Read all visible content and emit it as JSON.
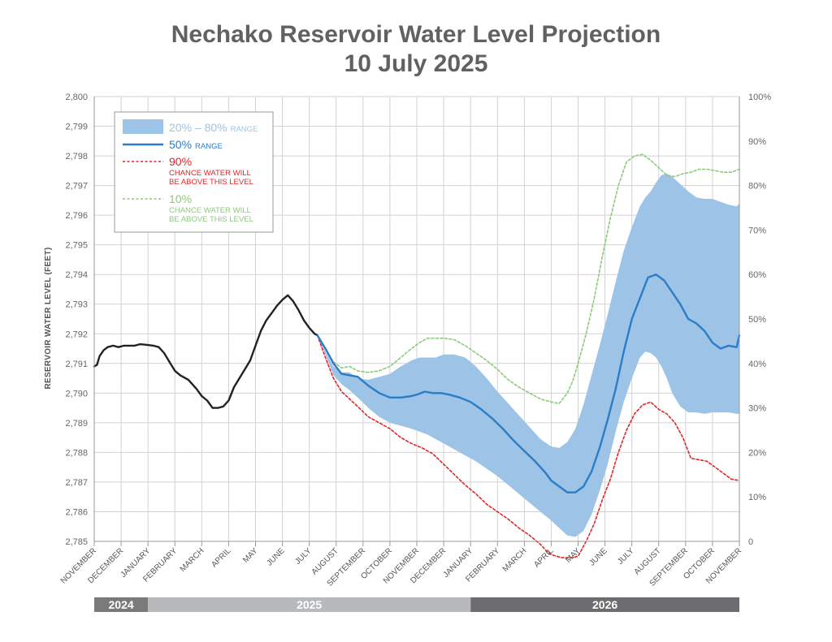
{
  "chart_data": {
    "type": "line",
    "title": "Nechako Reservoir Water Level Projection",
    "subtitle": "10 July 2025",
    "ylabel": "RESERVOIR WATER LEVEL (FEET)",
    "ylim": [
      2785,
      2800
    ],
    "yticks": [
      "2,785",
      "2,786",
      "2,787",
      "2,788",
      "2,789",
      "2,790",
      "2,791",
      "2,792",
      "2,793",
      "2,794",
      "2,795",
      "2,796",
      "2,797",
      "2,798",
      "2,799",
      "2,800"
    ],
    "y2ticks": [
      "0",
      "10%",
      "20%",
      "30%",
      "40%",
      "50%",
      "60%",
      "70%",
      "80%",
      "90%",
      "100%"
    ],
    "x_months": [
      "NOVEMBER",
      "DECEMBER",
      "JANUARY",
      "FEBRUARY",
      "MARCH",
      "APRIL",
      "MAY",
      "JUNE",
      "JULY",
      "AUGUST",
      "SEPTEMBER",
      "OCTOBER",
      "NOVEMBER",
      "DECEMBER",
      "JANUARY",
      "FEBRUARY",
      "MARCH",
      "APRIL",
      "MAY",
      "JUNE",
      "JULY",
      "AUGUST",
      "SEPTEMBER",
      "OCTOBER",
      "NOVEMBER"
    ],
    "years": [
      {
        "label": "2024",
        "start": 0,
        "end": 2,
        "color": "#7a7a7a"
      },
      {
        "label": "2025",
        "start": 2,
        "end": 14,
        "color": "#b7b9bb"
      },
      {
        "label": "2026",
        "start": 14,
        "end": 24,
        "color": "#6d6d6f"
      }
    ],
    "grid": true,
    "legend_position": "top-left",
    "legend": {
      "range_label": "20% – 80%",
      "range_suffix": "RANGE",
      "median_label": "50%",
      "median_suffix": "RANGE",
      "p90_label": "90%",
      "p90_line1": "CHANCE WATER WILL",
      "p90_line2": "BE ABOVE THIS LEVEL",
      "p10_label": "10%",
      "p10_line1": "CHANCE WATER WILL",
      "p10_line2": "BE ABOVE THIS LEVEL"
    },
    "colors": {
      "historical": "#222222",
      "median": "#2b7dc6",
      "band": "#9dc3e6",
      "p90": "#e0262a",
      "p10": "#8cc97c",
      "band_text": "#9dc3e6"
    },
    "series": [
      {
        "name": "Historical",
        "x": [
          0,
          0.1,
          0.2,
          0.35,
          0.5,
          0.7,
          0.9,
          1.1,
          1.3,
          1.5,
          1.7,
          2.0,
          2.2,
          2.4,
          2.6,
          2.8,
          3.0,
          3.2,
          3.5,
          3.8,
          4.0,
          4.2,
          4.4,
          4.6,
          4.8,
          5.0,
          5.2,
          5.4,
          5.6,
          5.8,
          6.0,
          6.2,
          6.4,
          6.6,
          6.8,
          7.0,
          7.2,
          7.4,
          7.6,
          7.8,
          8.0,
          8.2,
          8.3
        ],
        "y": [
          2790.9,
          2790.95,
          2791.25,
          2791.45,
          2791.55,
          2791.6,
          2791.55,
          2791.6,
          2791.6,
          2791.6,
          2791.65,
          2791.62,
          2791.6,
          2791.55,
          2791.35,
          2791.05,
          2790.75,
          2790.6,
          2790.45,
          2790.15,
          2789.9,
          2789.75,
          2789.5,
          2789.5,
          2789.55,
          2789.75,
          2790.2,
          2790.5,
          2790.8,
          2791.1,
          2791.6,
          2792.1,
          2792.45,
          2792.7,
          2792.95,
          2793.15,
          2793.3,
          2793.1,
          2792.8,
          2792.45,
          2792.2,
          2792.0,
          2791.95
        ]
      },
      {
        "name": "50%",
        "x": [
          8.3,
          8.6,
          8.9,
          9.2,
          9.5,
          9.8,
          10.2,
          10.6,
          11.0,
          11.4,
          11.8,
          12.0,
          12.3,
          12.6,
          12.9,
          13.2,
          13.6,
          14.0,
          14.4,
          14.8,
          15.2,
          15.6,
          16.0,
          16.4,
          16.8,
          17.0,
          17.3,
          17.6,
          17.9,
          18.2,
          18.5,
          18.8,
          19.1,
          19.4,
          19.7,
          20.0,
          20.3,
          20.6,
          20.9,
          21.2,
          21.5,
          21.8,
          22.1,
          22.4,
          22.7,
          23.0,
          23.3,
          23.6,
          23.9,
          24.0
        ],
        "y": [
          2791.95,
          2791.5,
          2791.0,
          2790.65,
          2790.6,
          2790.55,
          2790.25,
          2790.0,
          2789.85,
          2789.85,
          2789.9,
          2789.95,
          2790.05,
          2790.0,
          2790.0,
          2789.95,
          2789.85,
          2789.7,
          2789.45,
          2789.15,
          2788.8,
          2788.4,
          2788.05,
          2787.7,
          2787.3,
          2787.05,
          2786.85,
          2786.65,
          2786.65,
          2786.85,
          2787.35,
          2788.15,
          2789.1,
          2790.15,
          2791.4,
          2792.5,
          2793.2,
          2793.9,
          2794.0,
          2793.8,
          2793.4,
          2793.0,
          2792.5,
          2792.35,
          2792.1,
          2791.7,
          2791.5,
          2791.6,
          2791.55,
          2791.95
        ]
      },
      {
        "name": "90%",
        "x": [
          8.3,
          8.6,
          8.9,
          9.2,
          9.5,
          9.8,
          10.2,
          10.6,
          11.0,
          11.4,
          11.8,
          12.2,
          12.6,
          13.0,
          13.4,
          13.8,
          14.2,
          14.6,
          15.0,
          15.4,
          15.8,
          16.2,
          16.6,
          16.8,
          17.0,
          17.4,
          17.8,
          18.0,
          18.3,
          18.6,
          18.9,
          19.2,
          19.5,
          19.8,
          20.1,
          20.4,
          20.7,
          21.0,
          21.3,
          21.6,
          21.9,
          22.2,
          22.5,
          22.8,
          23.1,
          23.4,
          23.7,
          24.0
        ],
        "y": [
          2791.95,
          2791.2,
          2790.5,
          2790.05,
          2789.8,
          2789.55,
          2789.2,
          2789.0,
          2788.8,
          2788.5,
          2788.3,
          2788.15,
          2787.95,
          2787.6,
          2787.25,
          2786.9,
          2786.6,
          2786.25,
          2786.0,
          2785.75,
          2785.45,
          2785.2,
          2784.9,
          2784.7,
          2784.55,
          2784.45,
          2784.45,
          2784.5,
          2785.0,
          2785.6,
          2786.4,
          2787.1,
          2788.0,
          2788.75,
          2789.3,
          2789.6,
          2789.7,
          2789.45,
          2789.3,
          2789.0,
          2788.5,
          2787.8,
          2787.75,
          2787.7,
          2787.5,
          2787.3,
          2787.1,
          2787.05
        ]
      },
      {
        "name": "10%",
        "x": [
          8.3,
          8.6,
          8.9,
          9.2,
          9.5,
          9.8,
          10.2,
          10.6,
          11.0,
          11.4,
          11.8,
          12.1,
          12.4,
          12.7,
          13.0,
          13.4,
          13.8,
          14.2,
          14.6,
          15.0,
          15.4,
          15.8,
          16.2,
          16.6,
          17.0,
          17.3,
          17.6,
          17.8,
          18.0,
          18.3,
          18.6,
          18.9,
          19.2,
          19.5,
          19.8,
          20.1,
          20.4,
          20.7,
          21.0,
          21.3,
          21.6,
          21.9,
          22.2,
          22.5,
          22.8,
          23.1,
          23.4,
          23.7,
          24.0
        ],
        "y": [
          2791.95,
          2791.5,
          2791.05,
          2790.85,
          2790.9,
          2790.75,
          2790.7,
          2790.75,
          2790.9,
          2791.2,
          2791.5,
          2791.7,
          2791.85,
          2791.85,
          2791.85,
          2791.8,
          2791.6,
          2791.35,
          2791.1,
          2790.8,
          2790.45,
          2790.2,
          2790.0,
          2789.8,
          2789.7,
          2789.65,
          2790.0,
          2790.4,
          2791.0,
          2792.0,
          2793.2,
          2794.6,
          2795.9,
          2797.0,
          2797.8,
          2798.0,
          2798.05,
          2797.85,
          2797.6,
          2797.35,
          2797.3,
          2797.4,
          2797.45,
          2797.55,
          2797.55,
          2797.5,
          2797.45,
          2797.45,
          2797.55
        ]
      }
    ],
    "band": {
      "name": "20% – 80%",
      "x": [
        8.3,
        8.6,
        8.9,
        9.2,
        9.5,
        9.8,
        10.2,
        10.6,
        11.0,
        11.4,
        11.8,
        12.1,
        12.4,
        12.7,
        13.0,
        13.4,
        13.8,
        14.2,
        14.6,
        15.0,
        15.4,
        15.8,
        16.2,
        16.6,
        17.0,
        17.3,
        17.6,
        17.9,
        18.2,
        18.5,
        18.8,
        19.1,
        19.4,
        19.7,
        20.0,
        20.3,
        20.5,
        20.7,
        20.9,
        21.1,
        21.3,
        21.5,
        21.8,
        22.1,
        22.4,
        22.7,
        23.0,
        23.3,
        23.6,
        23.9,
        24.0
      ],
      "upper": [
        2791.95,
        2791.4,
        2790.9,
        2790.7,
        2790.7,
        2790.5,
        2790.45,
        2790.55,
        2790.65,
        2790.9,
        2791.1,
        2791.2,
        2791.2,
        2791.2,
        2791.3,
        2791.3,
        2791.2,
        2790.9,
        2790.5,
        2790.05,
        2789.65,
        2789.25,
        2788.85,
        2788.45,
        2788.2,
        2788.15,
        2788.35,
        2788.8,
        2789.6,
        2790.6,
        2791.6,
        2792.65,
        2793.75,
        2794.8,
        2795.6,
        2796.3,
        2796.6,
        2796.8,
        2797.1,
        2797.35,
        2797.4,
        2797.3,
        2797.05,
        2796.8,
        2796.6,
        2796.55,
        2796.55,
        2796.45,
        2796.35,
        2796.3,
        2796.4
      ],
      "lower": [
        2791.95,
        2791.3,
        2790.6,
        2790.3,
        2790.1,
        2789.85,
        2789.5,
        2789.2,
        2789.0,
        2788.9,
        2788.8,
        2788.7,
        2788.6,
        2788.45,
        2788.3,
        2788.1,
        2787.9,
        2787.7,
        2787.45,
        2787.2,
        2786.9,
        2786.6,
        2786.3,
        2786.0,
        2785.7,
        2785.45,
        2785.2,
        2785.15,
        2785.35,
        2785.9,
        2786.7,
        2787.6,
        2788.7,
        2789.7,
        2790.5,
        2791.2,
        2791.4,
        2791.35,
        2791.2,
        2790.9,
        2790.5,
        2790.0,
        2789.55,
        2789.35,
        2789.35,
        2789.3,
        2789.35,
        2789.35,
        2789.35,
        2789.3,
        2789.3
      ]
    }
  }
}
